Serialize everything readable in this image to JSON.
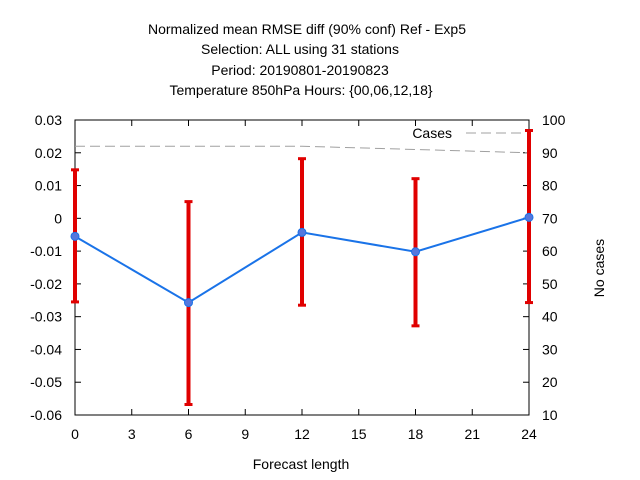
{
  "chart_data": {
    "type": "line",
    "title_lines": [
      "Normalized mean RMSE diff (90% conf) Ref - Exp5",
      "Selection: ALL using    31 stations",
      "Period: 20190801-20190823",
      "Temperature 850hPa   Hours: {00,06,12,18}"
    ],
    "xlabel": "Forecast length",
    "ylabel": "",
    "y2label": "No cases",
    "xlim": [
      0,
      24
    ],
    "ylim": [
      -0.06,
      0.03
    ],
    "y2lim": [
      10,
      100
    ],
    "x_ticks": [
      0,
      3,
      6,
      9,
      12,
      15,
      18,
      21,
      24
    ],
    "y_ticks": [
      -0.06,
      -0.05,
      -0.04,
      -0.03,
      -0.02,
      -0.01,
      0,
      0.01,
      0.02,
      0.03
    ],
    "y_tick_labels": [
      "-0.06",
      "-0.05",
      "-0.04",
      "-0.03",
      "-0.02",
      "-0.01",
      "0",
      "0.01",
      "0.02",
      "0.03"
    ],
    "y2_ticks": [
      10,
      20,
      30,
      40,
      50,
      60,
      70,
      80,
      90,
      100
    ],
    "grid": false,
    "legend_position": "top-right",
    "legend": [
      {
        "name": "Cases",
        "style": "dashed",
        "color": "#a0a0a0"
      }
    ],
    "series": [
      {
        "name": "",
        "color": "#1a73e8",
        "marker_color": "#5577dd",
        "x": [
          0,
          6,
          12,
          18,
          24
        ],
        "y": [
          -0.0055,
          -0.0257,
          -0.0043,
          -0.0102,
          0.0003
        ],
        "err_low": [
          -0.0255,
          -0.0568,
          -0.0265,
          -0.0328,
          -0.0257
        ],
        "err_high": [
          0.0148,
          0.0051,
          0.0182,
          0.0121,
          0.0268
        ],
        "err_color": "#e00000"
      }
    ],
    "cases": {
      "color": "#a0a0a0",
      "x": [
        0,
        6,
        12,
        18,
        24
      ],
      "y": [
        92,
        92,
        92,
        91,
        90
      ]
    }
  }
}
